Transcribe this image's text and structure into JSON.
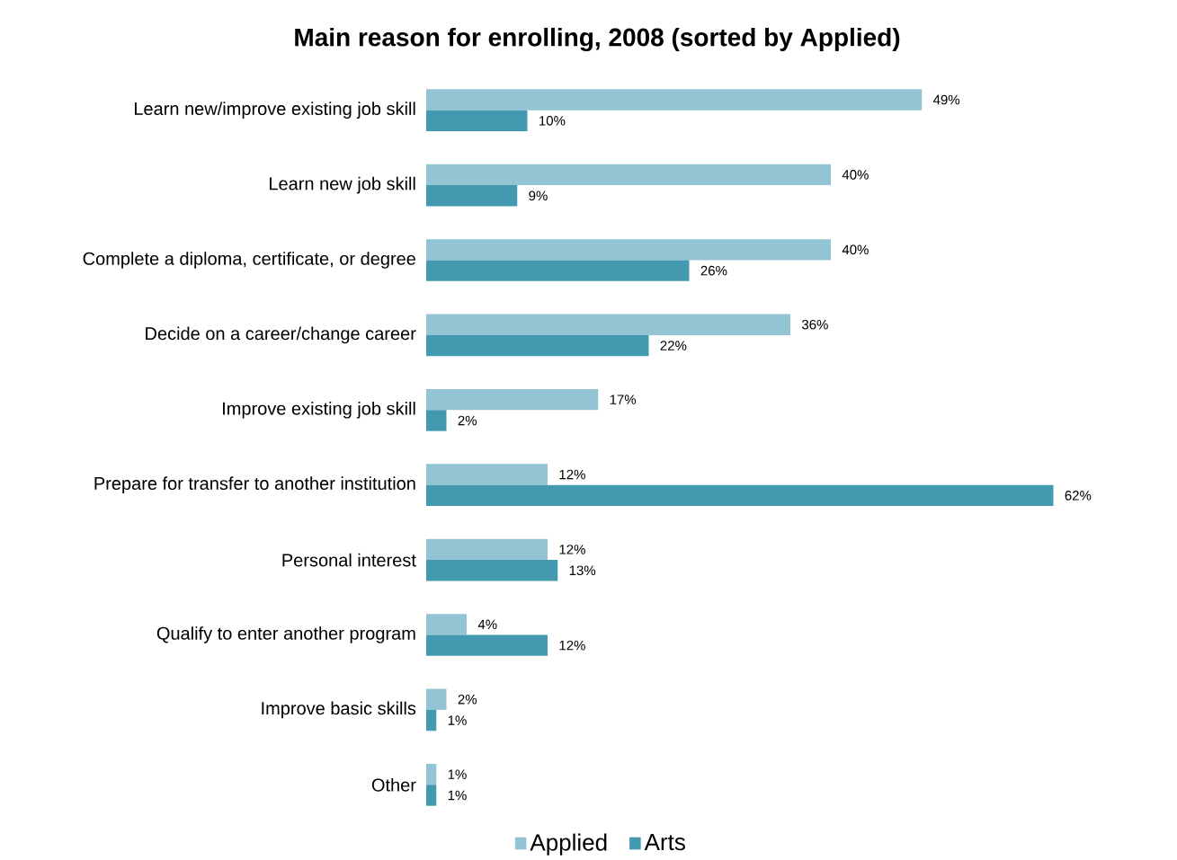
{
  "chart_data": {
    "type": "bar",
    "orientation": "horizontal",
    "title": "Main reason for enrolling, 2008 (sorted by Applied)",
    "categories": [
      "Learn new/improve existing job skill",
      "Learn new job skill",
      "Complete a diploma, certificate, or degree",
      "Decide on a career/change career",
      "Improve existing job skill",
      "Prepare for transfer to another institution",
      "Personal interest",
      "Qualify to enter another program",
      "Improve basic skills",
      "Other"
    ],
    "series": [
      {
        "name": "Applied",
        "color": "#92c4d4",
        "values": [
          49,
          40,
          40,
          36,
          17,
          12,
          12,
          4,
          2,
          1
        ],
        "value_labels": [
          "49%",
          "40%",
          "40%",
          "36%",
          "17%",
          "12%",
          "12%",
          "4%",
          "2%",
          "1%"
        ]
      },
      {
        "name": "Arts",
        "color": "#4299b0",
        "values": [
          10,
          9,
          26,
          22,
          2,
          62,
          13,
          12,
          1,
          1
        ],
        "value_labels": [
          "10%",
          "9%",
          "26%",
          "22%",
          "2%",
          "62%",
          "13%",
          "12%",
          "1%",
          "1%"
        ]
      }
    ],
    "legend": "bottom"
  }
}
